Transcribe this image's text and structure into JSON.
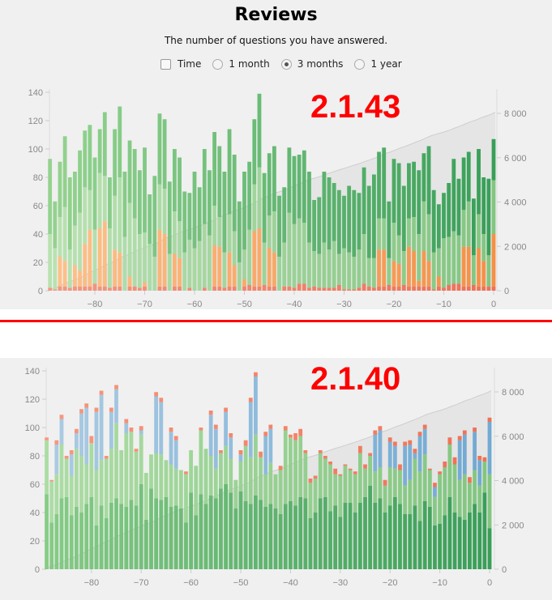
{
  "header": {
    "title": "Reviews",
    "subtitle": "The number of questions you have answered.",
    "controls": [
      {
        "type": "checkbox",
        "label": "Time",
        "checked": false
      },
      {
        "type": "radio",
        "label": "1 month",
        "checked": false
      },
      {
        "type": "radio",
        "label": "3 months",
        "checked": true
      },
      {
        "type": "radio",
        "label": "1 year",
        "checked": false
      }
    ]
  },
  "versions": {
    "top": "2.1.43",
    "bottom": "2.1.40"
  },
  "colors": {
    "version_label": "#ff0000",
    "divider": "#ff0000",
    "panel_bg": "#f0f0f0"
  },
  "chart_data": [
    {
      "type": "bar",
      "name": "reviews-2.1.43",
      "stacking_order_bottom_to_top": [
        "relearn",
        "learn",
        "young",
        "mature"
      ],
      "x_start": -89,
      "x_end": 0,
      "xticks": [
        -80,
        -70,
        -60,
        -50,
        -40,
        -30,
        -20,
        -10,
        0
      ],
      "xtick_labels": [
        "−80",
        "−70",
        "−60",
        "−50",
        "−40",
        "−30",
        "−20",
        "−10",
        "0"
      ],
      "ylim": [
        0,
        140
      ],
      "yticks": [
        0,
        20,
        40,
        60,
        80,
        100,
        120,
        140
      ],
      "ytick_labels": [
        "0",
        "20",
        "40",
        "60",
        "80",
        "100",
        "120",
        "140"
      ],
      "y2lim": [
        0,
        8950
      ],
      "y2ticks": [
        0,
        2000,
        4000,
        6000,
        8000
      ],
      "y2tick_labels": [
        "0",
        "2 000",
        "4 000",
        "6 000",
        "8 000"
      ],
      "cumulative_line": true,
      "colors": {
        "mature": [
          "#8fd18a",
          "#2e9b50"
        ],
        "young": [
          "#b5e0ad",
          "#7cc47a"
        ],
        "learn": [
          "#fdbf84",
          "#f58b3c"
        ],
        "relearn": [
          "#f4927a",
          "#ee6a4f"
        ]
      }
    },
    {
      "type": "bar",
      "name": "reviews-2.1.40",
      "stacking_order_bottom_to_top": [
        "mature",
        "young",
        "learn",
        "relearn"
      ],
      "x_start": -89,
      "x_end": 0,
      "xticks": [
        -80,
        -70,
        -60,
        -50,
        -40,
        -30,
        -20,
        -10,
        0
      ],
      "xtick_labels": [
        "−80",
        "−70",
        "−60",
        "−50",
        "−40",
        "−30",
        "−20",
        "−10",
        "0"
      ],
      "ylim": [
        0,
        140
      ],
      "yticks": [
        0,
        20,
        40,
        60,
        80,
        100,
        120,
        140
      ],
      "ytick_labels": [
        "0",
        "20",
        "40",
        "60",
        "80",
        "100",
        "120",
        "140"
      ],
      "y2lim": [
        0,
        8950
      ],
      "y2ticks": [
        0,
        2000,
        4000,
        6000,
        8000
      ],
      "y2tick_labels": [
        "0",
        "2 000",
        "4 000",
        "6 000",
        "8 000"
      ],
      "cumulative_line": true,
      "colors": {
        "mature": [
          "#7fc97f",
          "#2f9a50"
        ],
        "young": [
          "#a8dba0",
          "#7cc47a"
        ],
        "learn": [
          "#a6c8e0",
          "#6aa6d2"
        ],
        "relearn": [
          "#f59277",
          "#ef6a4c"
        ]
      }
    }
  ],
  "series": {
    "mature": [
      53,
      33,
      39,
      50,
      51,
      38,
      44,
      40,
      46,
      51,
      31,
      45,
      36,
      47,
      50,
      46,
      44,
      49,
      45,
      60,
      35,
      57,
      50,
      49,
      51,
      44,
      45,
      43,
      33,
      54,
      38,
      53,
      46,
      52,
      50,
      57,
      60,
      54,
      43,
      55,
      48,
      46,
      52,
      49,
      44,
      46,
      43,
      39,
      46,
      48,
      45,
      51,
      50,
      36,
      40,
      50,
      51,
      41,
      45,
      37,
      47,
      47,
      40,
      47,
      51,
      59,
      47,
      50,
      40,
      45,
      51,
      46,
      39,
      39,
      45,
      34,
      48,
      44,
      31,
      32,
      38,
      51,
      40,
      37,
      35,
      40,
      46,
      40,
      54,
      29
    ],
    "young": [
      38,
      29,
      28,
      38,
      27,
      28,
      41,
      40,
      28,
      38,
      39,
      32,
      42,
      38,
      53,
      38,
      52,
      48,
      38,
      35,
      33,
      24,
      32,
      32,
      26,
      30,
      26,
      27,
      34,
      30,
      35,
      45,
      39,
      28,
      21,
      25,
      27,
      24,
      20,
      21,
      39,
      33,
      43,
      30,
      23,
      29,
      24,
      31,
      52,
      45,
      46,
      43,
      32,
      25,
      24,
      32,
      27,
      33,
      22,
      29,
      26,
      23,
      27,
      35,
      20,
      21,
      22,
      22,
      19,
      27,
      20,
      24,
      20,
      24,
      33,
      35,
      33,
      26,
      20,
      35,
      34,
      37,
      34,
      26,
      32,
      21,
      24,
      19,
      22,
      38
    ],
    "learn": [
      0,
      0,
      21,
      18,
      0,
      15,
      11,
      30,
      40,
      0,
      41,
      46,
      0,
      26,
      24,
      0,
      7,
      0,
      0,
      3,
      0,
      0,
      40,
      37,
      0,
      23,
      20,
      0,
      0,
      0,
      0,
      0,
      0,
      29,
      28,
      0,
      24,
      15,
      0,
      5,
      0,
      39,
      41,
      0,
      27,
      24,
      0,
      0,
      0,
      0,
      0,
      0,
      0,
      0,
      0,
      0,
      0,
      0,
      0,
      0,
      0,
      0,
      0,
      0,
      0,
      0,
      26,
      26,
      0,
      18,
      16,
      0,
      28,
      25,
      4,
      25,
      18,
      0,
      7,
      0,
      0,
      0,
      0,
      28,
      28,
      0,
      27,
      18,
      0,
      37
    ],
    "relearn": [
      2,
      1,
      3,
      3,
      2,
      3,
      3,
      3,
      3,
      5,
      3,
      3,
      2,
      3,
      3,
      0,
      3,
      3,
      2,
      3,
      0,
      0,
      3,
      3,
      0,
      3,
      3,
      0,
      2,
      0,
      0,
      2,
      0,
      3,
      3,
      2,
      3,
      3,
      0,
      3,
      4,
      3,
      3,
      4,
      3,
      3,
      0,
      3,
      3,
      2,
      5,
      5,
      2,
      3,
      2,
      2,
      2,
      2,
      4,
      1,
      1,
      1,
      2,
      5,
      3,
      2,
      3,
      3,
      4,
      3,
      3,
      4,
      3,
      3,
      3,
      3,
      3,
      1,
      3,
      2,
      4,
      5,
      5,
      3,
      3,
      4,
      3,
      3,
      3,
      3
    ]
  }
}
